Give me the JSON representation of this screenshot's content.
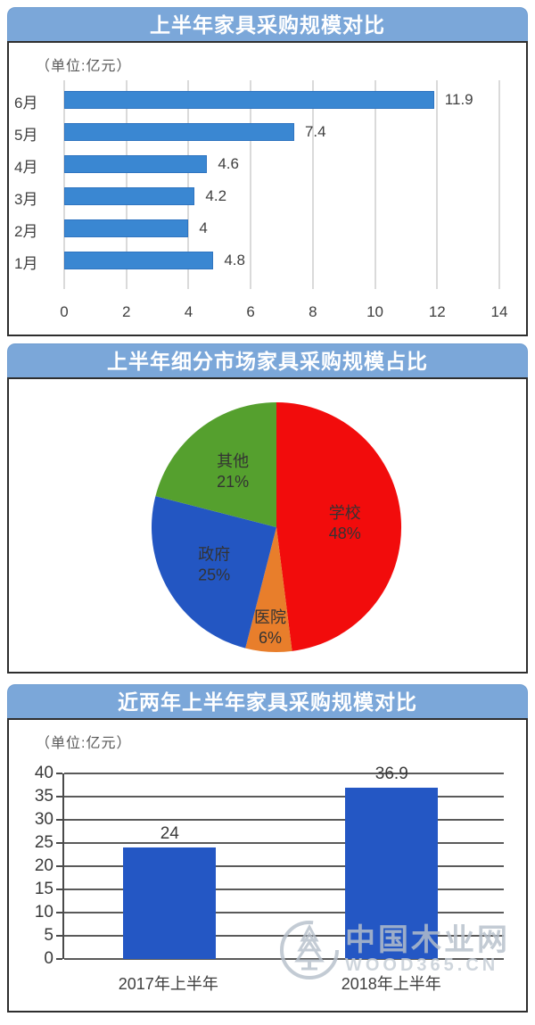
{
  "sections": [
    {
      "title": "上半年家具采购规模对比",
      "unit": "（单位:亿元）"
    },
    {
      "title": "上半年细分市场家具采购规模占比"
    },
    {
      "title": "近两年上半年家具采购规模对比",
      "unit": "（单位:亿元）"
    }
  ],
  "watermark": {
    "name": "中国木业网",
    "domain": "WOOD365.CN"
  },
  "colors": {
    "header_bg": "#7ba7d9",
    "hbar_blue": "#3a87d2",
    "vbar_blue": "#2457c4",
    "pie_red": "#f20c0c",
    "pie_orange": "#e87e2b",
    "pie_blue": "#2356c2",
    "pie_green": "#55a02e"
  },
  "chart_data": [
    {
      "type": "bar",
      "orientation": "horizontal",
      "title": "上半年家具采购规模对比",
      "unit": "（单位:亿元）",
      "categories": [
        "6月",
        "5月",
        "4月",
        "3月",
        "2月",
        "1月"
      ],
      "values": [
        11.9,
        7.4,
        4.6,
        4.2,
        4,
        4.8
      ],
      "value_labels": [
        "11.9",
        "7.4",
        "4.6",
        "4.2",
        "4",
        "4.8"
      ],
      "xlim": [
        0,
        14
      ],
      "xticks": [
        0,
        2,
        4,
        6,
        8,
        10,
        12,
        14
      ],
      "grid": "vertical",
      "bar_color": "#3a87d2"
    },
    {
      "type": "pie",
      "title": "上半年细分市场家具采购规模占比",
      "start_angle": "top",
      "direction": "clockwise",
      "slices": [
        {
          "label": "学校",
          "pct": 48,
          "color": "#f20c0c",
          "label_r": 0.55
        },
        {
          "label": "医院",
          "pct": 6,
          "color": "#e87e2b",
          "label_r": 0.8
        },
        {
          "label": "政府",
          "pct": 25,
          "color": "#2356c2",
          "label_r": 0.58
        },
        {
          "label": "其他",
          "pct": 21,
          "color": "#55a02e",
          "label_r": 0.57
        }
      ]
    },
    {
      "type": "bar",
      "orientation": "vertical",
      "title": "近两年上半年家具采购规模对比",
      "unit": "（单位:亿元）",
      "categories": [
        "2017年上半年",
        "2018年上半年"
      ],
      "values": [
        24,
        36.9
      ],
      "value_labels": [
        "24",
        "36.9"
      ],
      "ylim": [
        0,
        40
      ],
      "yticks": [
        40,
        35,
        30,
        25,
        20,
        15,
        10,
        5,
        0
      ],
      "grid": "horizontal",
      "bar_color": "#2457c4",
      "bar_centers_pct": [
        24,
        74.5
      ]
    }
  ]
}
